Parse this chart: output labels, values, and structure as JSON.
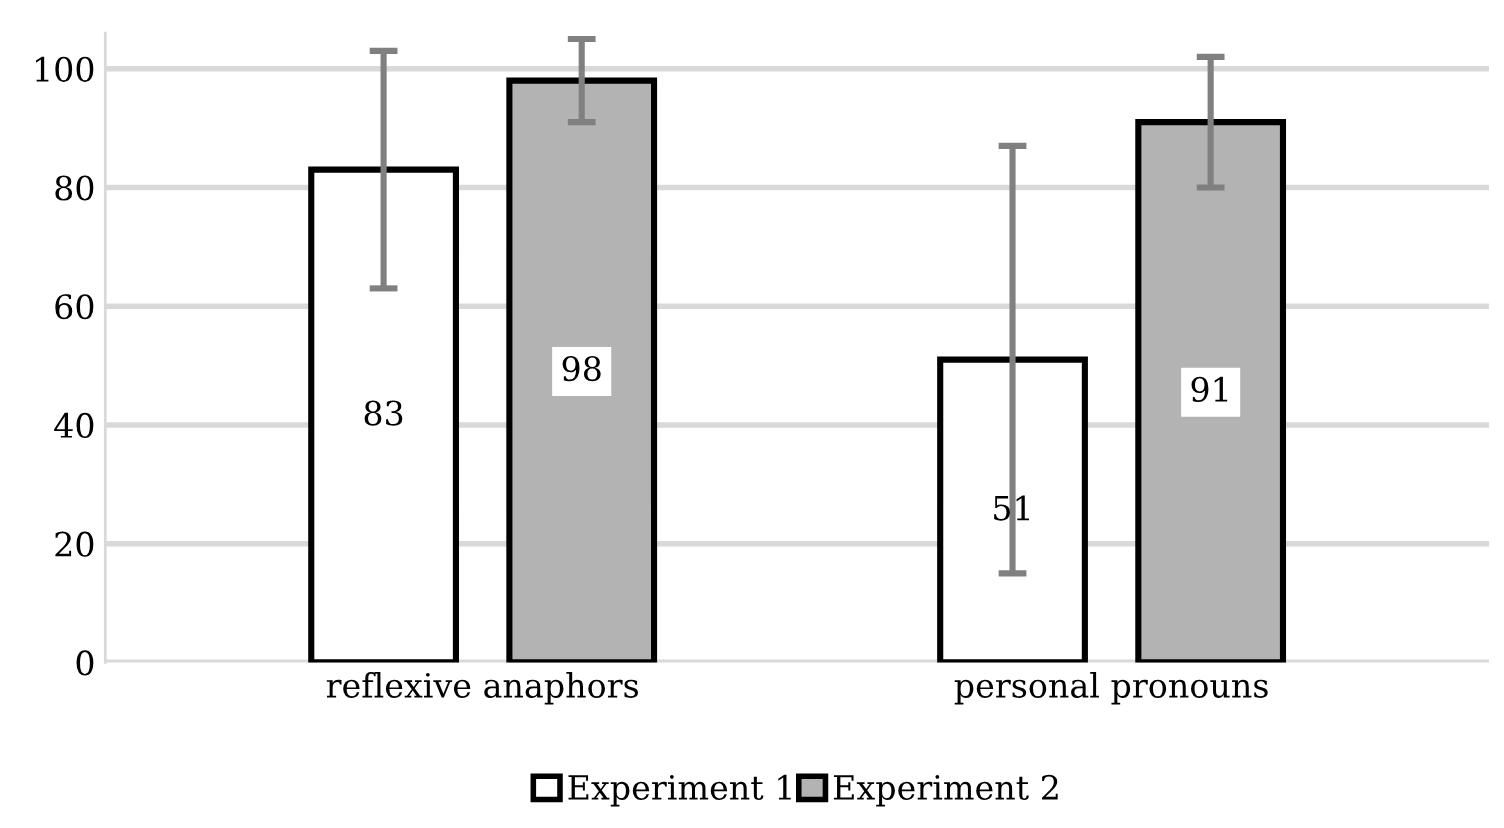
{
  "chart_data": {
    "type": "bar",
    "categories": [
      "reflexive anaphors",
      "personal pronouns"
    ],
    "series": [
      {
        "name": "Experiment 1",
        "color": "#ffffff",
        "values": [
          83,
          51
        ],
        "errors": [
          20,
          36
        ]
      },
      {
        "name": "Experiment 2",
        "color": "#b3b3b3",
        "values": [
          98,
          91
        ],
        "errors": [
          7,
          11
        ]
      }
    ],
    "ylim": [
      0,
      106
    ],
    "yticks": [
      0,
      20,
      40,
      60,
      80,
      100
    ],
    "grid": "y",
    "legend": "bottom",
    "data_labels": true
  }
}
